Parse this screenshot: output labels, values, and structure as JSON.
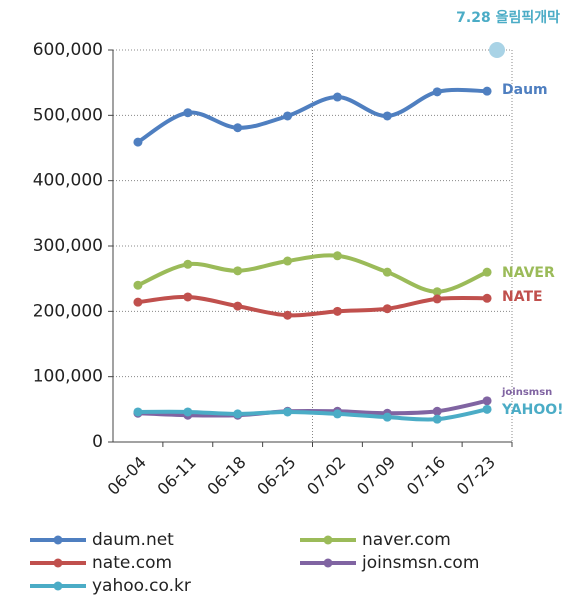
{
  "chart_data": {
    "type": "line",
    "annotation": {
      "text": "7.28 올림픽개막",
      "value": 600000,
      "color": "#a9d3e6"
    },
    "categories": [
      "06-04",
      "06-11",
      "06-18",
      "06-25",
      "07-02",
      "07-09",
      "07-16",
      "07-23"
    ],
    "series": [
      {
        "name": "daum.net",
        "logo": "Daum",
        "color": "#4f7fc0",
        "values": [
          459000,
          504000,
          481000,
          499000,
          528000,
          499000,
          536000,
          537000
        ]
      },
      {
        "name": "naver.com",
        "logo": "NAVER",
        "color": "#9bbb59",
        "values": [
          240000,
          272000,
          262000,
          277000,
          285000,
          260000,
          230000,
          260000
        ]
      },
      {
        "name": "nate.com",
        "logo": "NATE",
        "color": "#c0504d",
        "values": [
          214000,
          222000,
          208000,
          194000,
          200000,
          204000,
          219000,
          220000
        ]
      },
      {
        "name": "joinsmsn.com",
        "logo": "joinsmsn",
        "color": "#8064a2",
        "values": [
          44000,
          41000,
          41000,
          47000,
          47000,
          44000,
          47000,
          63000
        ]
      },
      {
        "name": "yahoo.co.kr",
        "logo": "YAHOO!",
        "color": "#4bacc6",
        "values": [
          46000,
          46000,
          43000,
          46000,
          43000,
          38000,
          35000,
          50000
        ]
      }
    ],
    "ylim": [
      0,
      600000
    ],
    "yticks": [
      0,
      {
        "value": 100000,
        "label": "100,000"
      },
      {
        "value": 200000,
        "label": "200,000"
      },
      {
        "value": 300000,
        "label": "300,000"
      },
      {
        "value": 400000,
        "label": "400,000"
      },
      {
        "value": 500000,
        "label": "500,000"
      },
      {
        "value": 600000,
        "label": "600,000"
      }
    ],
    "grid": true
  }
}
